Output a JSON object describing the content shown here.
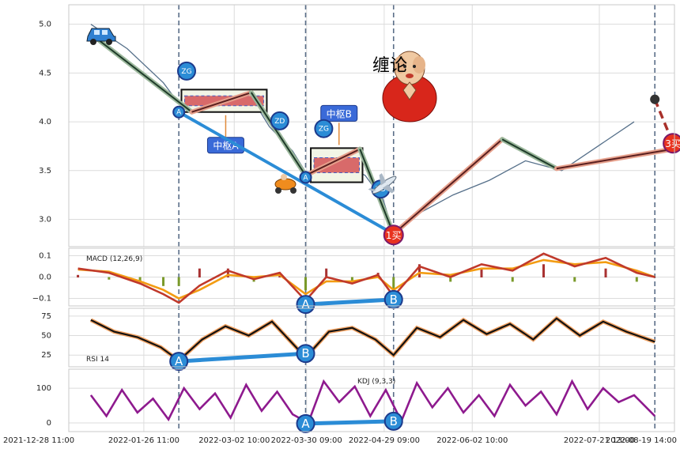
{
  "chart_data": [
    {
      "type": "line",
      "panel": "price",
      "title": "缠论",
      "ylim": [
        2.72,
        5.2
      ],
      "yticks": [
        "5.0",
        "4.5",
        "4.0",
        "3.5",
        "3.0"
      ],
      "ytick_values": [
        5.0,
        4.5,
        4.0,
        3.5,
        3.0
      ],
      "x_range": [
        "2021-12-28 11:00",
        "2022-08-19 14:00"
      ],
      "x_tick_labels": [
        "2021-12-28 11:00",
        "2022-01-26 11:00",
        "2022-03-02 10:00",
        "2022-03-30 09:00",
        "2022-04-29 09:00",
        "2022-06-02 10:00",
        "2022-07-21 13:00",
        "2022-08-19 14:00"
      ],
      "vlines": [
        "2022-02-09",
        "2022-03-30",
        "2022-05-03",
        "2022-08-12"
      ],
      "price_series": {
        "x": [
          "2022-01-06",
          "2022-01-20",
          "2022-02-03",
          "2022-02-10",
          "2022-02-24",
          "2022-03-09",
          "2022-03-16",
          "2022-03-25",
          "2022-04-01",
          "2022-04-08",
          "2022-04-15",
          "2022-04-22",
          "2022-04-29",
          "2022-05-03",
          "2022-05-12",
          "2022-05-26",
          "2022-06-09",
          "2022-06-23",
          "2022-07-07",
          "2022-07-21",
          "2022-08-04"
        ],
        "y": [
          5.0,
          4.75,
          4.4,
          4.15,
          4.3,
          4.25,
          3.95,
          3.7,
          3.4,
          3.6,
          3.55,
          3.45,
          3.2,
          2.85,
          3.05,
          3.25,
          3.4,
          3.6,
          3.5,
          3.75,
          4.0
        ]
      },
      "stroke_series": {
        "x": [
          "2022-01-06",
          "2022-02-14",
          "2022-03-09",
          "2022-03-30",
          "2022-04-20",
          "2022-05-03",
          "2022-06-14",
          "2022-07-05",
          "2022-08-19"
        ],
        "y": [
          4.9,
          4.1,
          4.3,
          3.45,
          3.72,
          2.85,
          3.82,
          3.52,
          3.72
        ]
      },
      "segment_line": {
        "x": [
          "2022-02-09",
          "2022-05-03"
        ],
        "y": [
          4.1,
          2.85
        ]
      },
      "centers": [
        {
          "label": "中枢A",
          "x": [
            "2022-02-10",
            "2022-03-15"
          ],
          "zg": 4.33,
          "zd": 4.1
        },
        {
          "label": "中枢B",
          "x": [
            "2022-04-01",
            "2022-04-21"
          ],
          "zg": 3.73,
          "zd": 3.38
        }
      ],
      "points": [
        {
          "label": "A",
          "x": "2022-02-09",
          "y": 4.1
        },
        {
          "label": "ZG",
          "x": "2022-02-12",
          "y": 4.52
        },
        {
          "label": "ZD",
          "x": "2022-03-20",
          "y": 4.01
        },
        {
          "label": "A",
          "x": "2022-03-30",
          "y": 3.43
        },
        {
          "label": "ZG",
          "x": "2022-04-06",
          "y": 3.93
        },
        {
          "label": "ZD",
          "x": "2022-04-28",
          "y": 3.31
        },
        {
          "label": "1买",
          "x": "2022-05-03",
          "y": 2.84
        },
        {
          "label": "3买",
          "x": "2022-08-19",
          "y": 3.78
        }
      ],
      "forecast": {
        "x": [
          "2022-08-12",
          "2022-08-19"
        ],
        "y": [
          4.23,
          3.78
        ]
      }
    },
    {
      "type": "line",
      "panel": "macd",
      "legend": "MACD (12,26,9)",
      "ylim": [
        -0.135,
        0.135
      ],
      "yticks": [
        "0.1",
        "0.0",
        "−0.1"
      ],
      "ytick_values": [
        0.1,
        0.0,
        -0.1
      ],
      "dif": {
        "x": [
          "2022-01-01",
          "2022-01-13",
          "2022-01-25",
          "2022-02-03",
          "2022-02-09",
          "2022-02-17",
          "2022-02-28",
          "2022-03-10",
          "2022-03-20",
          "2022-03-30",
          "2022-04-07",
          "2022-04-17",
          "2022-04-27",
          "2022-05-03",
          "2022-05-13",
          "2022-05-25",
          "2022-06-06",
          "2022-06-18",
          "2022-06-30",
          "2022-07-12",
          "2022-07-24",
          "2022-08-05",
          "2022-08-12"
        ],
        "y": [
          0.04,
          0.02,
          -0.03,
          -0.08,
          -0.12,
          -0.04,
          0.03,
          -0.01,
          0.02,
          -0.11,
          0.0,
          -0.03,
          0.01,
          -0.09,
          0.05,
          0.0,
          0.06,
          0.03,
          0.11,
          0.05,
          0.09,
          0.02,
          0.0
        ]
      },
      "dea": {
        "x": [
          "2022-01-01",
          "2022-01-13",
          "2022-01-25",
          "2022-02-03",
          "2022-02-09",
          "2022-02-17",
          "2022-02-28",
          "2022-03-10",
          "2022-03-20",
          "2022-03-30",
          "2022-04-07",
          "2022-04-17",
          "2022-04-27",
          "2022-05-03",
          "2022-05-13",
          "2022-05-25",
          "2022-06-06",
          "2022-06-18",
          "2022-06-30",
          "2022-07-12",
          "2022-07-24",
          "2022-08-05",
          "2022-08-12"
        ],
        "y": [
          0.035,
          0.025,
          -0.02,
          -0.06,
          -0.1,
          -0.06,
          0.01,
          0.0,
          0.01,
          -0.08,
          -0.02,
          -0.02,
          0.0,
          -0.06,
          0.02,
          0.01,
          0.04,
          0.04,
          0.08,
          0.06,
          0.07,
          0.03,
          0.0
        ]
      },
      "divergence": [
        {
          "label": "A",
          "x": "2022-03-30",
          "y": -0.128
        },
        {
          "label": "B",
          "x": "2022-05-03",
          "y": -0.105
        }
      ]
    },
    {
      "type": "line",
      "panel": "rsi",
      "legend": "RSI 14",
      "ylim": [
        10,
        85
      ],
      "yticks": [
        "75",
        "50",
        "25"
      ],
      "ytick_values": [
        75,
        50,
        25
      ],
      "rsi": {
        "x": [
          "2022-01-06",
          "2022-01-15",
          "2022-01-24",
          "2022-02-02",
          "2022-02-09",
          "2022-02-18",
          "2022-02-27",
          "2022-03-08",
          "2022-03-17",
          "2022-03-30",
          "2022-04-08",
          "2022-04-17",
          "2022-04-26",
          "2022-05-03",
          "2022-05-12",
          "2022-05-21",
          "2022-05-30",
          "2022-06-08",
          "2022-06-17",
          "2022-06-26",
          "2022-07-05",
          "2022-07-14",
          "2022-07-23",
          "2022-08-01",
          "2022-08-12"
        ],
        "y": [
          70,
          55,
          48,
          35,
          18,
          45,
          62,
          50,
          68,
          22,
          55,
          60,
          45,
          25,
          60,
          48,
          70,
          52,
          65,
          45,
          72,
          50,
          68,
          55,
          42
        ]
      },
      "divergence": [
        {
          "label": "A",
          "x": "2022-02-09",
          "y": 17
        },
        {
          "label": "B",
          "x": "2022-03-30",
          "y": 27
        }
      ]
    },
    {
      "type": "line",
      "panel": "kdj",
      "legend": "KDJ (9,3,3)",
      "ylim": [
        -25,
        155
      ],
      "yticks": [
        "100",
        "0"
      ],
      "ytick_values": [
        100,
        0
      ],
      "kdj": {
        "x": [
          "2022-01-06",
          "2022-01-12",
          "2022-01-18",
          "2022-01-24",
          "2022-01-30",
          "2022-02-05",
          "2022-02-11",
          "2022-02-17",
          "2022-02-23",
          "2022-03-01",
          "2022-03-07",
          "2022-03-13",
          "2022-03-19",
          "2022-03-25",
          "2022-03-31",
          "2022-04-06",
          "2022-04-12",
          "2022-04-18",
          "2022-04-24",
          "2022-04-30",
          "2022-05-06",
          "2022-05-12",
          "2022-05-18",
          "2022-05-24",
          "2022-05-30",
          "2022-06-05",
          "2022-06-11",
          "2022-06-17",
          "2022-06-23",
          "2022-06-29",
          "2022-07-05",
          "2022-07-11",
          "2022-07-17",
          "2022-07-23",
          "2022-07-29",
          "2022-08-04",
          "2022-08-12"
        ],
        "y": [
          80,
          20,
          95,
          30,
          70,
          10,
          100,
          40,
          85,
          15,
          110,
          35,
          90,
          25,
          0,
          120,
          60,
          105,
          20,
          95,
          5,
          115,
          45,
          100,
          30,
          80,
          20,
          110,
          50,
          90,
          25,
          120,
          40,
          100,
          60,
          80,
          20
        ]
      },
      "divergence": [
        {
          "label": "A",
          "x": "2022-03-30",
          "y": -2
        },
        {
          "label": "B",
          "x": "2022-05-03",
          "y": 5
        }
      ]
    }
  ]
}
